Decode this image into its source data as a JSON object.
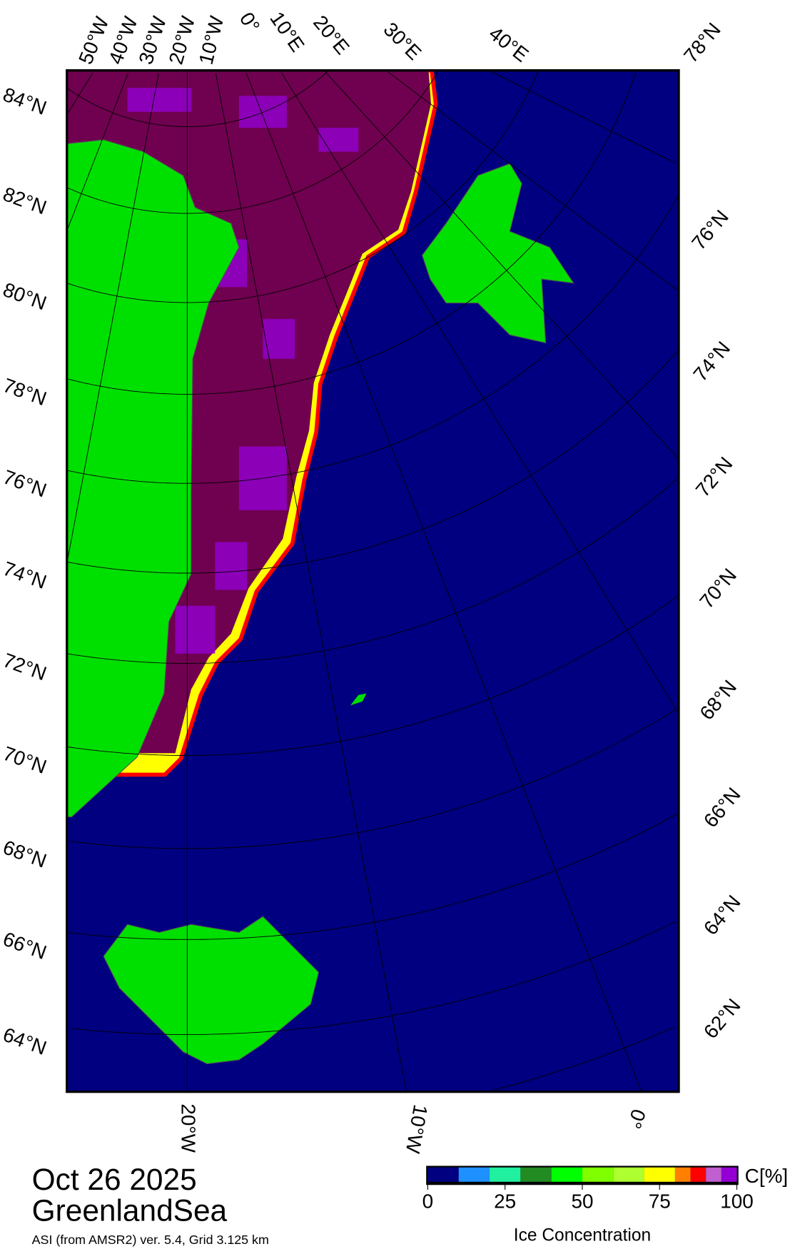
{
  "map": {
    "date": "Oct 26 2025",
    "region": "GreenlandSea",
    "source": "ASI (from AMSR2) ver. 5.4,  Grid 3.125 km",
    "colors": {
      "ocean": "#000080",
      "land": "#00e000",
      "ice_full": "#700050",
      "ice_high": "#9400d3"
    },
    "lat_labels_left": [
      "84°N",
      "82°N",
      "80°N",
      "78°N",
      "76°N",
      "74°N",
      "72°N",
      "70°N",
      "68°N",
      "66°N",
      "64°N"
    ],
    "lat_labels_right": [
      "78°N",
      "76°N",
      "74°N",
      "72°N",
      "70°N",
      "68°N",
      "66°N",
      "64°N",
      "62°N"
    ],
    "lon_labels_top": [
      "50°W",
      "40°W",
      "30°W",
      "20°W",
      "10°W",
      "0°",
      "10°E",
      "20°E",
      "30°E",
      "40°E"
    ],
    "lon_labels_bottom": [
      "20°W",
      "10°W",
      "0°"
    ]
  },
  "colorbar": {
    "title": "Ice Concentration",
    "unit": "C[%]",
    "ticks": [
      "0",
      "25",
      "50",
      "75",
      "100"
    ],
    "bins": [
      {
        "from": 0,
        "to": 10,
        "color": "#000080"
      },
      {
        "from": 10,
        "to": 20,
        "color": "#1e90ff"
      },
      {
        "from": 20,
        "to": 30,
        "color": "#20f0a0"
      },
      {
        "from": 30,
        "to": 40,
        "color": "#228b22"
      },
      {
        "from": 40,
        "to": 50,
        "color": "#00ff00"
      },
      {
        "from": 50,
        "to": 60,
        "color": "#7fff00"
      },
      {
        "from": 60,
        "to": 70,
        "color": "#adff2f"
      },
      {
        "from": 70,
        "to": 80,
        "color": "#ffff00"
      },
      {
        "from": 80,
        "to": 85,
        "color": "#ff8000"
      },
      {
        "from": 85,
        "to": 90,
        "color": "#ff0000"
      },
      {
        "from": 90,
        "to": 95,
        "color": "#c060d0"
      },
      {
        "from": 95,
        "to": 100,
        "color": "#9400d3"
      }
    ]
  }
}
